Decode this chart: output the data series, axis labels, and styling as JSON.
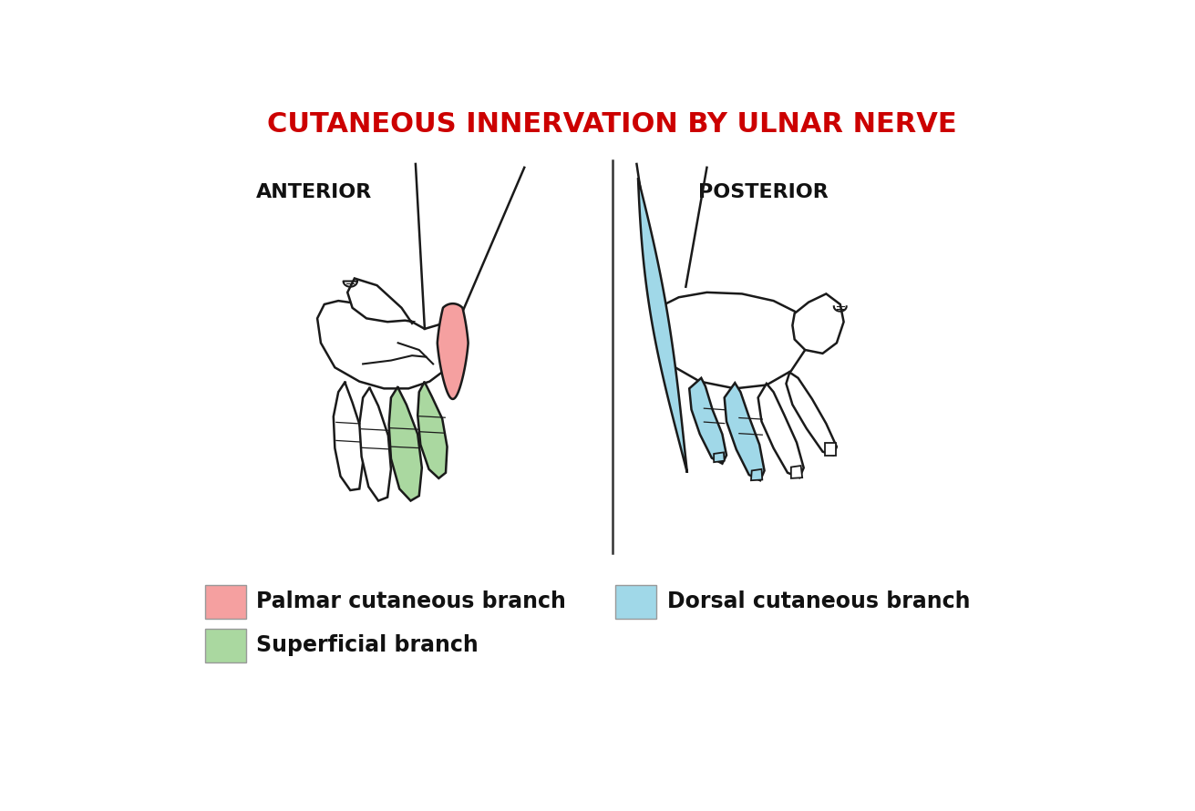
{
  "title": "CUTANEOUS INNERVATION BY ULNAR NERVE",
  "title_color": "#cc0000",
  "title_fontsize": 22,
  "background_color": "#ffffff",
  "anterior_label": "ANTERIOR",
  "posterior_label": "POSTERIOR",
  "legend": [
    {
      "color": "#f5a0a0",
      "label": "Palmar cutaneous branch"
    },
    {
      "color": "#aad8a0",
      "label": "Superficial branch"
    },
    {
      "color": "#a0d8e8",
      "label": "Dorsal cutaneous branch"
    }
  ],
  "outline_color": "#1a1a1a",
  "line_width": 1.8
}
